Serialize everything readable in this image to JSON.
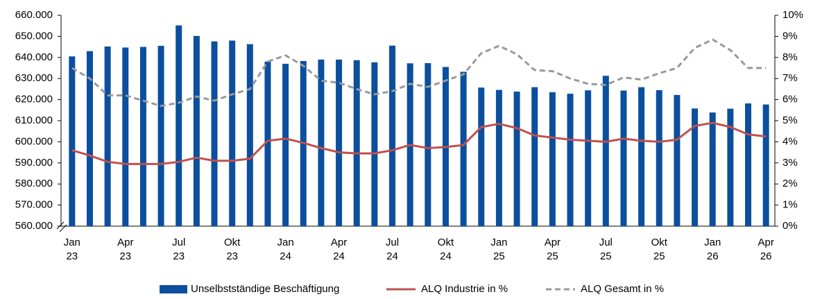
{
  "chart_data": {
    "type": "bar",
    "categories": [
      "Jan 23",
      null,
      null,
      "Apr 23",
      null,
      null,
      "Jul 23",
      null,
      null,
      "Okt 23",
      null,
      null,
      "Jan 24",
      null,
      null,
      "Apr 24",
      null,
      null,
      "Jul 24",
      null,
      null,
      "Okt 24",
      null,
      null,
      "Jan 25",
      null,
      null,
      "Apr 25",
      null,
      null,
      "Jul 25",
      null,
      null,
      "Okt 25",
      null,
      null,
      "Jan 26",
      null,
      null,
      "Apr 26"
    ],
    "series": [
      {
        "name": "Unselbstständige Beschäftigung",
        "type": "bar",
        "axis": "y",
        "color": "#0b4f9e",
        "values": [
          640500,
          643000,
          645200,
          644700,
          645000,
          645500,
          655200,
          650200,
          647600,
          648000,
          646300,
          638000,
          637000,
          638300,
          639000,
          639000,
          638700,
          637700,
          645600,
          637200,
          637300,
          635500,
          633200,
          625700,
          624600,
          623800,
          625900,
          623500,
          622800,
          624400,
          631300,
          624300,
          625900,
          624500,
          622200,
          615800,
          613900,
          615700,
          618200,
          617700
        ]
      },
      {
        "name": "ALQ Industrie in %",
        "type": "line",
        "axis": "y2",
        "color": "#c0504d",
        "dashed": false,
        "values": [
          3.6,
          3.35,
          3.05,
          2.95,
          2.95,
          2.95,
          3.05,
          3.25,
          3.1,
          3.1,
          3.2,
          4.05,
          4.15,
          3.95,
          3.7,
          3.5,
          3.45,
          3.45,
          3.6,
          3.85,
          3.7,
          3.75,
          3.85,
          4.7,
          4.85,
          4.65,
          4.3,
          4.2,
          4.1,
          4.05,
          4.0,
          4.15,
          4.05,
          4.0,
          4.1,
          4.75,
          4.9,
          4.7,
          4.35,
          4.25
        ]
      },
      {
        "name": "ALQ Gesamt in %",
        "type": "line",
        "axis": "y2",
        "color": "#999999",
        "dashed": true,
        "values": [
          7.5,
          7.0,
          6.2,
          6.2,
          5.95,
          5.7,
          5.85,
          6.15,
          5.95,
          6.25,
          6.5,
          7.8,
          8.1,
          7.6,
          6.9,
          6.8,
          6.5,
          6.25,
          6.4,
          6.75,
          6.6,
          6.9,
          7.2,
          8.2,
          8.55,
          8.15,
          7.4,
          7.35,
          7.0,
          6.75,
          6.7,
          7.05,
          6.95,
          7.25,
          7.5,
          8.45,
          8.85,
          8.35,
          7.5,
          7.5
        ]
      }
    ],
    "ylim": [
      560000,
      660000
    ],
    "yticks": [
      {
        "value": 560000,
        "label": "560.000"
      },
      {
        "value": 570000,
        "label": "570.000"
      },
      {
        "value": 580000,
        "label": "580.000"
      },
      {
        "value": 590000,
        "label": "590.000"
      },
      {
        "value": 600000,
        "label": "600.000"
      },
      {
        "value": 610000,
        "label": "610.000"
      },
      {
        "value": 620000,
        "label": "620.000"
      },
      {
        "value": 630000,
        "label": "630.000"
      },
      {
        "value": 640000,
        "label": "640.000"
      },
      {
        "value": 650000,
        "label": "650.000"
      },
      {
        "value": 660000,
        "label": "660.000"
      }
    ],
    "y2lim": [
      0,
      10
    ],
    "y2ticks": [
      {
        "value": 0,
        "label": "0%"
      },
      {
        "value": 1,
        "label": "1%"
      },
      {
        "value": 2,
        "label": "2%"
      },
      {
        "value": 3,
        "label": "3%"
      },
      {
        "value": 4,
        "label": "4%"
      },
      {
        "value": 5,
        "label": "5%"
      },
      {
        "value": 6,
        "label": "6%"
      },
      {
        "value": 7,
        "label": "7%"
      },
      {
        "value": 8,
        "label": "8%"
      },
      {
        "value": 9,
        "label": "9%"
      },
      {
        "value": 10,
        "label": "10%"
      }
    ],
    "legend": "bottom"
  }
}
